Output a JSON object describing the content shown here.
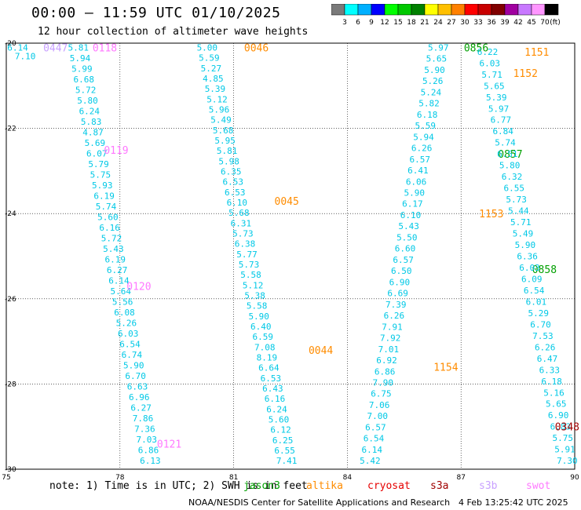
{
  "header": {
    "title": "00:00 — 11:59 UTC 01/10/2025",
    "subtitle": "12 hour collection of altimeter wave heights"
  },
  "legend": {
    "unit": "(ft)",
    "bins": [
      {
        "label": "3",
        "color": "#7a7a7a"
      },
      {
        "label": "6",
        "color": "#00ffff"
      },
      {
        "label": "9",
        "color": "#00b0ff"
      },
      {
        "label": "12",
        "color": "#0000ff"
      },
      {
        "label": "15",
        "color": "#00ff00"
      },
      {
        "label": "18",
        "color": "#00c800"
      },
      {
        "label": "21",
        "color": "#008000"
      },
      {
        "label": "24",
        "color": "#ffff00"
      },
      {
        "label": "27",
        "color": "#ffc000"
      },
      {
        "label": "30",
        "color": "#ff8000"
      },
      {
        "label": "33",
        "color": "#ff0000"
      },
      {
        "label": "36",
        "color": "#c80000"
      },
      {
        "label": "39",
        "color": "#800000"
      },
      {
        "label": "42",
        "color": "#a000a0"
      },
      {
        "label": "45",
        "color": "#c878ff"
      },
      {
        "label": "70",
        "color": "#ff96ff"
      },
      {
        "label": "",
        "color": "#000000"
      }
    ]
  },
  "axes": {
    "x_ticks": [
      "75",
      "78",
      "81",
      "84",
      "87",
      "90"
    ],
    "y_ticks": [
      "-20",
      "-22",
      "-24",
      "-26",
      "-28",
      "-30"
    ],
    "grid": true,
    "lon_range": [
      75,
      90
    ],
    "lat_range": [
      -30,
      -20
    ]
  },
  "colors": {
    "swh_text": "#00c8e6",
    "jason3": "#00a000",
    "altika": "#ff8c00",
    "cryosat": "#e60000",
    "s3a": "#a00000",
    "s3b": "#c8a0ff",
    "swot": "#ff78ff"
  },
  "chart_data": {
    "type": "scatter",
    "title": "00:00 — 11:59 UTC 01/10/2025",
    "subtitle": "12 hour collection of altimeter wave heights",
    "xlabel": "",
    "ylabel": "",
    "xlim": [
      75,
      90
    ],
    "ylim": [
      -30,
      -20
    ],
    "tracks": [
      {
        "satellite": "swot",
        "times": [
          {
            "label": "0118",
            "lon": 77.6,
            "lat": -20.1
          },
          {
            "label": "0119",
            "lon": 77.9,
            "lat": -22.5
          },
          {
            "label": "0120",
            "lon": 78.5,
            "lat": -25.7
          },
          {
            "label": "0121",
            "lon": 79.3,
            "lat": -29.4
          }
        ],
        "lon_start": 76.9,
        "lat_start": -20.1,
        "lon_end": 78.8,
        "lat_end": -29.8,
        "values": [
          5.81,
          5.94,
          5.99,
          6.68,
          5.72,
          5.8,
          6.24,
          5.83,
          4.87,
          5.69,
          6.07,
          5.79,
          5.75,
          5.93,
          6.19,
          5.74,
          5.6,
          6.16,
          5.72,
          5.43,
          6.19,
          6.27,
          6.14,
          5.64,
          5.56,
          6.08,
          5.26,
          6.03,
          6.54,
          6.74,
          5.9,
          6.7,
          6.63,
          6.96,
          6.27,
          7.86,
          7.36,
          7.03,
          6.86,
          6.13
        ]
      },
      {
        "satellite": "s3b",
        "times": [
          {
            "label": "0447",
            "lon": 76.3,
            "lat": -20.1
          }
        ],
        "lon_start": 75.3,
        "lat_start": -20.1,
        "lon_end": 75.5,
        "lat_end": -20.3,
        "values": [
          6.14,
          7.1
        ]
      },
      {
        "satellite": "altika",
        "times": [
          {
            "label": "0046",
            "lon": 81.6,
            "lat": -20.1
          },
          {
            "label": "0045",
            "lon": 82.4,
            "lat": -23.7
          },
          {
            "label": "0044",
            "lon": 83.3,
            "lat": -27.2
          }
        ],
        "lon_start": 80.3,
        "lat_start": -20.1,
        "lon_end": 82.4,
        "lat_end": -29.8,
        "values": [
          5.0,
          5.59,
          5.27,
          4.85,
          5.39,
          5.12,
          5.96,
          5.49,
          5.68,
          5.95,
          5.81,
          5.98,
          6.35,
          6.53,
          6.53,
          6.1,
          5.68,
          6.31,
          5.73,
          6.38,
          5.77,
          5.73,
          5.58,
          5.12,
          5.38,
          5.58,
          5.9,
          6.4,
          6.59,
          7.08,
          8.19,
          6.64,
          6.53,
          6.43,
          6.16,
          6.24,
          5.6,
          6.12,
          6.25,
          6.55,
          7.41
        ]
      },
      {
        "satellite": "jason3",
        "times": [
          {
            "label": "0856",
            "lon": 87.4,
            "lat": -20.1
          },
          {
            "label": "0857",
            "lon": 88.3,
            "lat": -22.6
          },
          {
            "label": "0858",
            "lon": 89.2,
            "lat": -25.3
          }
        ],
        "lon_start": 86.4,
        "lat_start": -20.1,
        "lon_end": 84.6,
        "lat_end": -29.8,
        "values": [
          5.97,
          5.65,
          5.9,
          5.26,
          5.24,
          5.82,
          6.18,
          5.59,
          5.94,
          6.26,
          6.57,
          6.41,
          6.06,
          5.9,
          6.17,
          6.1,
          5.43,
          5.5,
          6.6,
          6.57,
          6.5,
          6.9,
          6.69,
          7.39,
          6.26,
          7.91,
          7.92,
          7.01,
          6.92,
          6.86,
          7.9,
          6.75,
          7.06,
          7.0,
          6.57,
          6.54,
          6.14,
          5.42
        ]
      },
      {
        "satellite": "altika",
        "times": [
          {
            "label": "1151",
            "lon": 89.0,
            "lat": -20.2
          },
          {
            "label": "1152",
            "lon": 88.7,
            "lat": -20.7
          },
          {
            "label": "1153",
            "lon": 87.8,
            "lat": -24.0
          },
          {
            "label": "1154",
            "lon": 86.6,
            "lat": -27.6
          }
        ],
        "lon_start": 87.7,
        "lat_start": -20.2,
        "lon_end": 89.8,
        "lat_end": -29.8,
        "values": [
          6.22,
          6.03,
          5.71,
          5.65,
          5.39,
          5.97,
          6.77,
          6.84,
          5.74,
          6.51,
          5.8,
          6.32,
          6.55,
          5.73,
          5.44,
          5.71,
          5.49,
          5.9,
          6.36,
          6.03,
          6.09,
          6.54,
          6.01,
          5.29,
          6.7,
          7.53,
          6.26,
          6.47,
          6.33,
          6.18,
          5.16,
          5.65,
          6.9,
          6.83,
          5.75,
          5.91,
          7.3
        ]
      },
      {
        "satellite": "s3a",
        "times": [
          {
            "label": "0348",
            "lon": 89.8,
            "lat": -29.0
          }
        ],
        "lon_start": 89.3,
        "lat_start": -22.0,
        "lon_end": 89.7,
        "lat_end": -29.9,
        "values": []
      }
    ]
  },
  "footer": {
    "note": "note: 1) Time is in UTC; 2) SWH is in feet",
    "satellites": [
      {
        "label": "jason3",
        "color": "#00a000"
      },
      {
        "label": "altika",
        "color": "#ff8c00"
      },
      {
        "label": "cryosat",
        "color": "#e60000"
      },
      {
        "label": "s3a",
        "color": "#a00000"
      },
      {
        "label": "s3b",
        "color": "#c8a0ff"
      },
      {
        "label": "swot",
        "color": "#ff78ff"
      }
    ],
    "credit": "NOAA/NESDIS Center for Satellite Applications and Research",
    "timestamp": "4 Feb 13:25:42 UTC 2025"
  }
}
